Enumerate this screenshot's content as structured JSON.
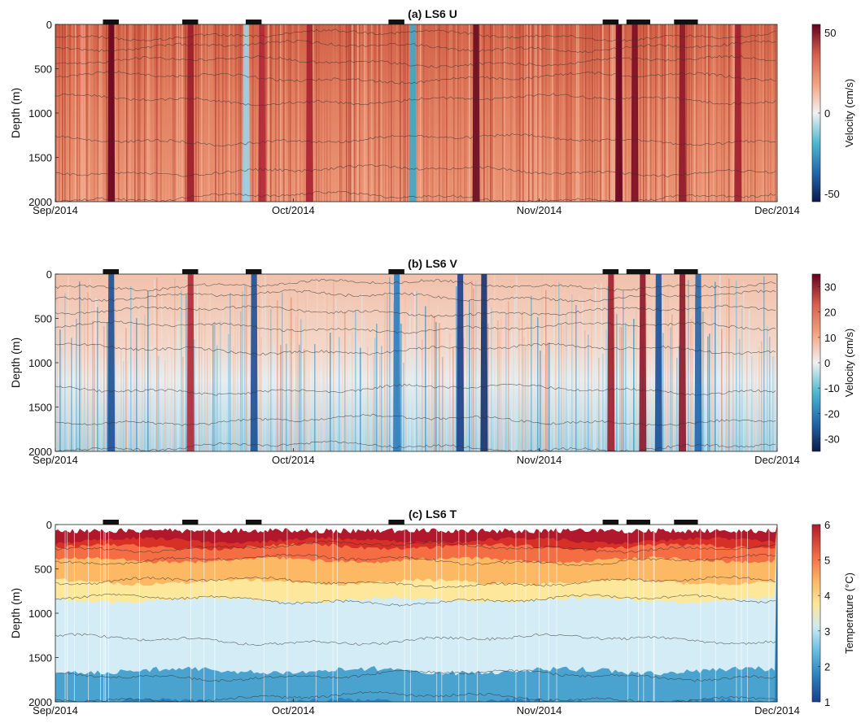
{
  "chart_data": [
    {
      "type": "heatmap",
      "title": "(a) LS6 U",
      "ylabel": "Depth (m)",
      "x_tick_labels": [
        "Sep/2014",
        "Oct/2014",
        "Nov/2014",
        "Dec/2014"
      ],
      "xlim": [
        "2014-09-01",
        "2014-12-01"
      ],
      "y_ticks": [
        0,
        500,
        1000,
        1500,
        2000
      ],
      "ylim": [
        2000,
        0
      ],
      "colorbar": {
        "label": "Velocity (cm/s)",
        "ticks": [
          50,
          0,
          -50
        ],
        "range": [
          -55,
          55
        ],
        "colors": [
          "#0c1a4a",
          "#2166ac",
          "#4bb8d0",
          "#f0f0f0",
          "#f4a582",
          "#d6604d",
          "#67001f"
        ]
      },
      "events": [
        {
          "start": "2014-09-07",
          "end": "2014-09-09"
        },
        {
          "start": "2014-09-17",
          "end": "2014-09-19"
        },
        {
          "start": "2014-09-25",
          "end": "2014-09-27"
        },
        {
          "start": "2014-10-13",
          "end": "2014-10-15"
        },
        {
          "start": "2014-11-09",
          "end": "2014-11-11"
        },
        {
          "start": "2014-11-12",
          "end": "2014-11-15"
        },
        {
          "start": "2014-11-18",
          "end": "2014-11-21"
        }
      ],
      "note_values": {
        "mean_u_upper": 28,
        "mean_u_deep": 18,
        "strong_events_u": [
          52,
          50,
          48,
          55,
          52,
          54,
          50
        ]
      }
    },
    {
      "type": "heatmap",
      "title": "(b) LS6 V",
      "ylabel": "Depth (m)",
      "x_tick_labels": [
        "Sep/2014",
        "Oct/2014",
        "Nov/2014",
        "Dec/2014"
      ],
      "xlim": [
        "2014-09-01",
        "2014-12-01"
      ],
      "y_ticks": [
        0,
        500,
        1000,
        1500,
        2000
      ],
      "ylim": [
        2000,
        0
      ],
      "colorbar": {
        "label": "Velocity (cm/s)",
        "ticks": [
          30,
          20,
          10,
          0,
          -10,
          -20,
          -30
        ],
        "range": [
          -35,
          35
        ],
        "colors": [
          "#0c1a4a",
          "#2166ac",
          "#4bb8d0",
          "#f0f0f0",
          "#f4a582",
          "#d6604d",
          "#67001f"
        ]
      },
      "events": [
        {
          "start": "2014-09-07",
          "end": "2014-09-09"
        },
        {
          "start": "2014-09-17",
          "end": "2014-09-19"
        },
        {
          "start": "2014-09-25",
          "end": "2014-09-27"
        },
        {
          "start": "2014-10-13",
          "end": "2014-10-15"
        },
        {
          "start": "2014-11-09",
          "end": "2014-11-11"
        },
        {
          "start": "2014-11-12",
          "end": "2014-11-15"
        },
        {
          "start": "2014-11-18",
          "end": "2014-11-21"
        }
      ]
    },
    {
      "type": "heatmap",
      "title": "(c) LS6 T",
      "ylabel": "Depth (m)",
      "x_tick_labels": [
        "Sep/2014",
        "Oct/2014",
        "Nov/2014",
        "Dec/2014"
      ],
      "xlim": [
        "2014-09-01",
        "2014-12-01"
      ],
      "y_ticks": [
        0,
        500,
        1000,
        1500,
        2000
      ],
      "ylim": [
        2000,
        0
      ],
      "colorbar": {
        "label": "Temperature (°C)",
        "ticks": [
          6,
          5,
          4,
          3,
          2,
          1
        ],
        "range": [
          1,
          6
        ],
        "colors": [
          "#1a3f8c",
          "#2b82c0",
          "#6cc3e3",
          "#cdeaf3",
          "#fde79a",
          "#fdb863",
          "#f46d43",
          "#d73027",
          "#b2182b"
        ]
      },
      "temperature_layers": [
        {
          "upper_T": 6,
          "lower_T": 5.5,
          "depth_bottom": 180
        },
        {
          "upper_T": 5.5,
          "lower_T": 5,
          "depth_bottom": 250
        },
        {
          "upper_T": 5,
          "lower_T": 4,
          "depth_bottom": 400
        },
        {
          "upper_T": 4,
          "lower_T": 3.5,
          "depth_bottom": 650
        },
        {
          "upper_T": 3.5,
          "lower_T": 3,
          "depth_bottom": 850
        },
        {
          "upper_T": 3,
          "lower_T": 2.5,
          "depth_bottom": 1650
        },
        {
          "upper_T": 2.5,
          "lower_T": 2,
          "depth_bottom": 2000
        }
      ],
      "events": [
        {
          "start": "2014-09-07",
          "end": "2014-09-09"
        },
        {
          "start": "2014-09-17",
          "end": "2014-09-19"
        },
        {
          "start": "2014-09-25",
          "end": "2014-09-27"
        },
        {
          "start": "2014-10-13",
          "end": "2014-10-15"
        },
        {
          "start": "2014-11-09",
          "end": "2014-11-11"
        },
        {
          "start": "2014-11-12",
          "end": "2014-11-15"
        },
        {
          "start": "2014-11-18",
          "end": "2014-11-21"
        }
      ]
    }
  ]
}
